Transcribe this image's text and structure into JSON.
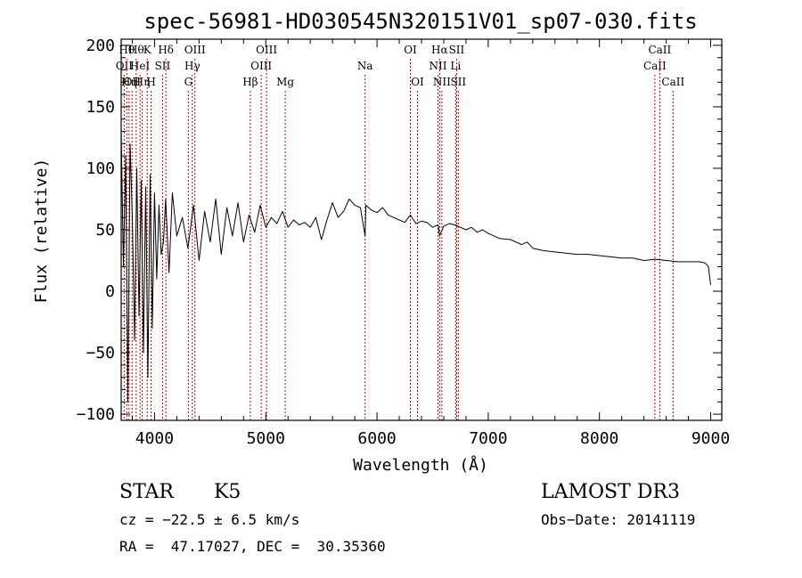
{
  "chart_data": {
    "type": "line",
    "title": "spec-56981-HD030545N320151V01_sp07-030.fits",
    "xlabel": "Wavelength (Å)",
    "ylabel": "Flux (relative)",
    "xlim": [
      3700,
      9100
    ],
    "ylim": [
      -105,
      205
    ],
    "xticks": [
      4000,
      5000,
      6000,
      7000,
      8000,
      9000
    ],
    "yticks": [
      -100,
      -50,
      0,
      50,
      100,
      150,
      200
    ],
    "series": [
      {
        "name": "flux",
        "x": [
          3700,
          3720,
          3740,
          3760,
          3780,
          3800,
          3820,
          3840,
          3860,
          3880,
          3900,
          3920,
          3940,
          3960,
          3980,
          4000,
          4020,
          4040,
          4060,
          4080,
          4100,
          4130,
          4160,
          4200,
          4250,
          4300,
          4350,
          4400,
          4450,
          4500,
          4550,
          4600,
          4650,
          4700,
          4750,
          4800,
          4850,
          4900,
          4950,
          5000,
          5050,
          5100,
          5150,
          5200,
          5250,
          5300,
          5350,
          5400,
          5450,
          5500,
          5550,
          5600,
          5650,
          5700,
          5750,
          5800,
          5850,
          5893,
          5900,
          5950,
          6000,
          6050,
          6100,
          6150,
          6200,
          6250,
          6300,
          6350,
          6400,
          6450,
          6500,
          6550,
          6563,
          6600,
          6650,
          6700,
          6750,
          6800,
          6850,
          6900,
          6950,
          7000,
          7100,
          7200,
          7300,
          7350,
          7400,
          7500,
          7600,
          7700,
          7800,
          7900,
          8000,
          8100,
          8200,
          8300,
          8400,
          8500,
          8600,
          8700,
          8800,
          8900,
          8950,
          8980,
          9000
        ],
        "values": [
          130,
          20,
          110,
          -90,
          120,
          60,
          -40,
          100,
          -20,
          90,
          -50,
          85,
          -70,
          95,
          -30,
          80,
          10,
          70,
          30,
          40,
          75,
          15,
          80,
          45,
          60,
          35,
          70,
          25,
          65,
          40,
          75,
          30,
          68,
          45,
          72,
          40,
          62,
          48,
          70,
          52,
          60,
          55,
          65,
          52,
          58,
          54,
          56,
          52,
          60,
          42,
          58,
          72,
          60,
          65,
          75,
          70,
          68,
          45,
          70,
          66,
          64,
          68,
          62,
          60,
          58,
          56,
          62,
          55,
          57,
          56,
          52,
          54,
          45,
          53,
          55,
          54,
          52,
          50,
          52,
          48,
          50,
          47,
          43,
          42,
          38,
          40,
          35,
          33,
          32,
          31,
          30,
          30,
          29,
          28,
          27,
          27,
          25,
          26,
          25,
          24,
          24,
          24,
          23,
          20,
          5
        ]
      }
    ],
    "lines": [
      {
        "wl": 3727,
        "labels": [
          {
            "text": "OII",
            "row": 2
          }
        ]
      },
      {
        "wl": 3750,
        "labels": [
          {
            "text": "Hθ",
            "row": 1
          }
        ]
      },
      {
        "wl": 3771,
        "labels": [
          {
            "text": "Hη",
            "row": 3
          }
        ]
      },
      {
        "wl": 3798,
        "labels": [
          {
            "text": "OII",
            "row": 3
          }
        ]
      },
      {
        "wl": 3835,
        "labels": [
          {
            "text": "Hθ",
            "row": 1
          }
        ]
      },
      {
        "wl": 3869,
        "labels": [
          {
            "text": "HeI",
            "row": 2
          }
        ]
      },
      {
        "wl": 3889,
        "labels": [
          {
            "text": "Hη",
            "row": 3
          }
        ]
      },
      {
        "wl": 3934,
        "labels": [
          {
            "text": "K",
            "row": 1
          }
        ]
      },
      {
        "wl": 3969,
        "labels": [
          {
            "text": "H",
            "row": 3
          }
        ]
      },
      {
        "wl": 4072,
        "labels": [
          {
            "text": "SII",
            "row": 2
          }
        ]
      },
      {
        "wl": 4102,
        "labels": [
          {
            "text": "Hδ",
            "row": 1
          }
        ]
      },
      {
        "wl": 4304,
        "labels": [
          {
            "text": "G",
            "row": 3
          }
        ]
      },
      {
        "wl": 4340,
        "labels": [
          {
            "text": "Hγ",
            "row": 2
          }
        ]
      },
      {
        "wl": 4363,
        "labels": [
          {
            "text": "OIII",
            "row": 1
          }
        ]
      },
      {
        "wl": 4861,
        "labels": [
          {
            "text": "Hβ",
            "row": 3
          }
        ]
      },
      {
        "wl": 4959,
        "labels": [
          {
            "text": "OIII",
            "row": 2
          }
        ]
      },
      {
        "wl": 5007,
        "labels": [
          {
            "text": "OIII",
            "row": 1
          }
        ]
      },
      {
        "wl": 5175,
        "labels": [
          {
            "text": "Mg",
            "row": 3
          }
        ]
      },
      {
        "wl": 5893,
        "labels": [
          {
            "text": "Na",
            "row": 2
          }
        ]
      },
      {
        "wl": 6300,
        "labels": [
          {
            "text": "OI",
            "row": 1
          }
        ]
      },
      {
        "wl": 6364,
        "labels": [
          {
            "text": "OI",
            "row": 3
          }
        ]
      },
      {
        "wl": 6548,
        "labels": [
          {
            "text": "NII",
            "row": 2
          }
        ]
      },
      {
        "wl": 6563,
        "labels": [
          {
            "text": "Hα",
            "row": 1
          }
        ]
      },
      {
        "wl": 6583,
        "labels": [
          {
            "text": "NII",
            "row": 3
          }
        ]
      },
      {
        "wl": 6707,
        "labels": [
          {
            "text": "Li",
            "row": 2
          }
        ]
      },
      {
        "wl": 6716,
        "labels": [
          {
            "text": "SII",
            "row": 1
          }
        ]
      },
      {
        "wl": 6731,
        "labels": [
          {
            "text": "SII",
            "row": 3
          }
        ]
      },
      {
        "wl": 8498,
        "labels": [
          {
            "text": "CaII",
            "row": 2
          }
        ]
      },
      {
        "wl": 8542,
        "labels": [
          {
            "text": "CaII",
            "row": 1
          }
        ]
      },
      {
        "wl": 8662,
        "labels": [
          {
            "text": "CaII",
            "row": 3
          }
        ]
      }
    ]
  },
  "info": {
    "object_class": "STAR",
    "subclass": "K5",
    "survey": "LAMOST DR3",
    "cz": "cz = −22.5 ± 6.5 km/s",
    "obs_date": "Obs−Date: 20141119",
    "coords": "RA =  47.17027, DEC =  30.35360"
  },
  "colors": {
    "line_marker": "#cc0000",
    "spectrum": "#000000"
  }
}
